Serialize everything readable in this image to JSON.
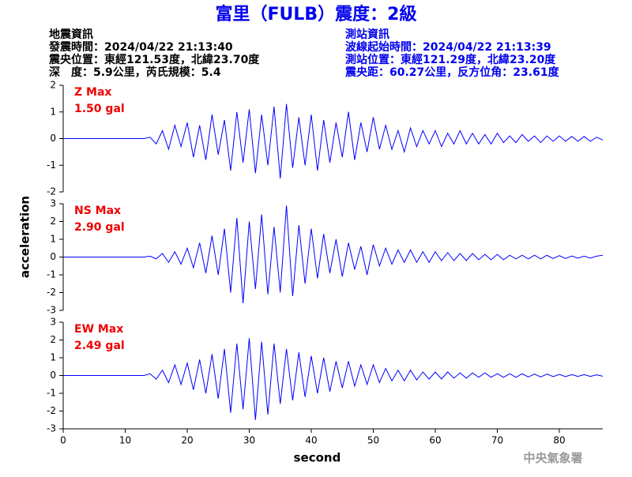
{
  "header": {
    "title": "富里（FULB）震度：2級",
    "event_info": [
      "地震資訊",
      "發震時間：2024/04/22 21:13:40",
      "震央位置：東經121.53度，北緯23.70度",
      "深　度：5.9公里，芮氏規模：5.4"
    ],
    "station_info": [
      "測站資訊",
      "波線起始時間：2024/04/22 21:13:39",
      "測站位置：東經121.29度，北緯23.20度",
      "震央距：60.27公里，反方位角：23.61度"
    ],
    "ylabel": "acceleration",
    "credit": "中央氣象署"
  },
  "chart_data": [
    {
      "type": "line",
      "label": "Z Max",
      "max_label": "1.50 gal",
      "color": "#0000ff",
      "x": [
        0,
        1,
        2,
        3,
        4,
        5,
        6,
        7,
        8,
        9,
        10,
        11,
        12,
        13,
        14,
        15,
        16,
        17,
        18,
        19,
        20,
        21,
        22,
        23,
        24,
        25,
        26,
        27,
        28,
        29,
        30,
        31,
        32,
        33,
        34,
        35,
        36,
        37,
        38,
        39,
        40,
        41,
        42,
        43,
        44,
        45,
        46,
        47,
        48,
        49,
        50,
        51,
        52,
        53,
        54,
        55,
        56,
        57,
        58,
        59,
        60,
        61,
        62,
        63,
        64,
        65,
        66,
        67,
        68,
        69,
        70,
        71,
        72,
        73,
        74,
        75,
        76,
        77,
        78,
        79,
        80,
        81,
        82,
        83,
        84,
        85,
        86,
        87
      ],
      "values": [
        0,
        0,
        0,
        0,
        0,
        0,
        0,
        0,
        0,
        0,
        0,
        0,
        0,
        0,
        0.05,
        -0.2,
        0.3,
        -0.4,
        0.5,
        -0.3,
        0.6,
        -0.7,
        0.5,
        -0.8,
        0.9,
        -0.6,
        0.7,
        -1.2,
        1.0,
        -0.9,
        1.1,
        -1.3,
        0.9,
        -1.0,
        1.2,
        -1.5,
        1.3,
        -1.1,
        0.8,
        -1.0,
        0.9,
        -1.2,
        0.7,
        -0.9,
        0.6,
        -0.7,
        1.0,
        -0.8,
        0.6,
        -0.5,
        0.8,
        -0.4,
        0.5,
        -0.4,
        0.3,
        -0.5,
        0.4,
        -0.3,
        0.3,
        -0.2,
        0.3,
        -0.3,
        0.2,
        -0.2,
        0.3,
        -0.2,
        0.2,
        -0.2,
        0.15,
        -0.2,
        0.2,
        -0.15,
        0.1,
        -0.15,
        0.15,
        -0.1,
        0.1,
        -0.15,
        0.1,
        -0.1,
        0.1,
        -0.1,
        0.08,
        -0.1,
        0.08,
        -0.1,
        0.05,
        -0.05
      ],
      "xlim": [
        0,
        87
      ],
      "ylim": [
        -2,
        2
      ],
      "yticks": [
        -2,
        -1,
        0,
        1,
        2
      ]
    },
    {
      "type": "line",
      "label": "NS Max",
      "max_label": "2.90 gal",
      "color": "#0000ff",
      "x": [
        0,
        1,
        2,
        3,
        4,
        5,
        6,
        7,
        8,
        9,
        10,
        11,
        12,
        13,
        14,
        15,
        16,
        17,
        18,
        19,
        20,
        21,
        22,
        23,
        24,
        25,
        26,
        27,
        28,
        29,
        30,
        31,
        32,
        33,
        34,
        35,
        36,
        37,
        38,
        39,
        40,
        41,
        42,
        43,
        44,
        45,
        46,
        47,
        48,
        49,
        50,
        51,
        52,
        53,
        54,
        55,
        56,
        57,
        58,
        59,
        60,
        61,
        62,
        63,
        64,
        65,
        66,
        67,
        68,
        69,
        70,
        71,
        72,
        73,
        74,
        75,
        76,
        77,
        78,
        79,
        80,
        81,
        82,
        83,
        84,
        85,
        86,
        87
      ],
      "values": [
        0,
        0,
        0,
        0,
        0,
        0,
        0,
        0,
        0,
        0,
        0,
        0,
        0,
        0,
        0.05,
        -0.1,
        0.2,
        -0.3,
        0.3,
        -0.4,
        0.5,
        -0.6,
        0.8,
        -0.9,
        1.2,
        -1.0,
        1.6,
        -2.0,
        2.2,
        -2.6,
        2.0,
        -1.8,
        2.4,
        -2.1,
        1.7,
        -2.0,
        2.9,
        -2.2,
        1.8,
        -1.5,
        1.6,
        -1.2,
        1.3,
        -0.9,
        1.0,
        -1.1,
        0.8,
        -0.7,
        0.6,
        -1.0,
        0.7,
        -0.5,
        0.5,
        -0.4,
        0.4,
        -0.3,
        0.4,
        -0.3,
        0.3,
        -0.3,
        0.3,
        -0.2,
        0.25,
        -0.2,
        0.2,
        -0.2,
        0.2,
        -0.15,
        0.15,
        -0.15,
        0.15,
        -0.15,
        0.1,
        -0.1,
        0.1,
        -0.1,
        0.1,
        -0.1,
        0.1,
        -0.08,
        0.08,
        -0.08,
        0.06,
        -0.06,
        0.05,
        -0.06,
        0.05,
        0.1
      ],
      "xlim": [
        0,
        87
      ],
      "ylim": [
        -3,
        3
      ],
      "yticks": [
        -3,
        -2,
        -1,
        0,
        1,
        2,
        3
      ]
    },
    {
      "type": "line",
      "label": "EW Max",
      "max_label": "2.49 gal",
      "color": "#0000ff",
      "x": [
        0,
        1,
        2,
        3,
        4,
        5,
        6,
        7,
        8,
        9,
        10,
        11,
        12,
        13,
        14,
        15,
        16,
        17,
        18,
        19,
        20,
        21,
        22,
        23,
        24,
        25,
        26,
        27,
        28,
        29,
        30,
        31,
        32,
        33,
        34,
        35,
        36,
        37,
        38,
        39,
        40,
        41,
        42,
        43,
        44,
        45,
        46,
        47,
        48,
        49,
        50,
        51,
        52,
        53,
        54,
        55,
        56,
        57,
        58,
        59,
        60,
        61,
        62,
        63,
        64,
        65,
        66,
        67,
        68,
        69,
        70,
        71,
        72,
        73,
        74,
        75,
        76,
        77,
        78,
        79,
        80,
        81,
        82,
        83,
        84,
        85,
        86,
        87
      ],
      "values": [
        0,
        0,
        0,
        0,
        0,
        0,
        0,
        0,
        0,
        0,
        0,
        0,
        0,
        0,
        0.1,
        -0.2,
        0.3,
        -0.4,
        0.6,
        -0.5,
        0.7,
        -0.8,
        0.9,
        -1.0,
        1.2,
        -1.3,
        1.5,
        -2.1,
        1.8,
        -1.9,
        2.1,
        -2.5,
        1.9,
        -2.2,
        1.8,
        -1.6,
        1.5,
        -1.4,
        1.3,
        -1.2,
        1.1,
        -1.0,
        1.0,
        -0.9,
        0.8,
        -0.7,
        0.8,
        -0.6,
        0.6,
        -0.5,
        0.6,
        -0.4,
        0.4,
        -0.3,
        0.3,
        -0.3,
        0.3,
        -0.25,
        0.2,
        -0.2,
        0.2,
        -0.2,
        0.2,
        -0.15,
        0.15,
        -0.15,
        0.15,
        -0.1,
        0.15,
        -0.1,
        0.1,
        -0.1,
        0.1,
        -0.1,
        0.1,
        -0.08,
        0.08,
        -0.08,
        0.08,
        -0.06,
        0.06,
        -0.06,
        0.05,
        -0.05,
        0.05,
        -0.05,
        0.04,
        -0.04
      ],
      "xlim": [
        0,
        87
      ],
      "ylim": [
        -3,
        3
      ],
      "yticks": [
        -3,
        -2,
        -1,
        0,
        1,
        2,
        3
      ],
      "xticks": [
        0,
        10,
        20,
        30,
        40,
        50,
        60,
        70,
        80
      ],
      "xlabel": "second"
    }
  ]
}
